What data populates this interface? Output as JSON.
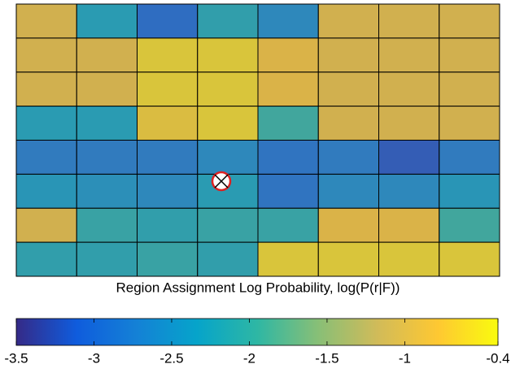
{
  "chart_data": {
    "type": "heatmap",
    "title": "Region Assignment Log Probability, log(P(r|F))",
    "values": [
      [
        -0.9,
        -2.3,
        -3.0,
        -2.2,
        -2.6,
        -0.9,
        -0.9,
        -0.9
      ],
      [
        -0.9,
        -0.9,
        -0.6,
        -0.6,
        -0.8,
        -0.9,
        -0.9,
        -0.9
      ],
      [
        -0.9,
        -0.9,
        -0.6,
        -0.6,
        -0.8,
        -0.9,
        -0.9,
        -0.9
      ],
      [
        -2.3,
        -2.3,
        -0.7,
        -0.6,
        -2.0,
        -0.9,
        -0.9,
        -0.9
      ],
      [
        -2.8,
        -2.8,
        -2.8,
        -2.6,
        -2.9,
        -2.8,
        -3.2,
        -2.8
      ],
      [
        -2.4,
        -2.5,
        -2.6,
        -2.3,
        -2.9,
        -2.6,
        -2.6,
        -2.4
      ],
      [
        -0.9,
        -2.1,
        -2.2,
        -2.1,
        -2.1,
        -0.8,
        -0.8,
        -2.0
      ],
      [
        -2.2,
        -2.2,
        -2.1,
        -2.2,
        -0.6,
        -0.6,
        -0.6,
        -0.6
      ]
    ],
    "colorbar": {
      "lim": [
        -3.5,
        -0.4
      ],
      "ticks": [
        -3.5,
        -3,
        -2.5,
        -2,
        -1.5,
        -1,
        -0.4
      ]
    }
  }
}
